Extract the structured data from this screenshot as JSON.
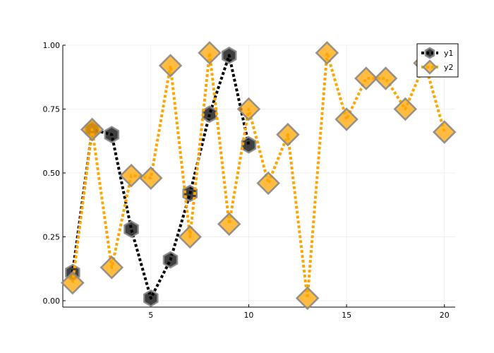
{
  "chart_data": {
    "type": "line",
    "title": "",
    "xlabel": "",
    "ylabel": "",
    "xlim": [
      0.5,
      20.55
    ],
    "ylim": [
      -0.025,
      1.0
    ],
    "grid": true,
    "legend_position": "top-right",
    "x_ticks": [
      5,
      10,
      15,
      20
    ],
    "x_tick_labels": [
      "5",
      "10",
      "15",
      "20"
    ],
    "y_ticks": [
      0.0,
      0.25,
      0.5,
      0.75,
      1.0
    ],
    "y_tick_labels": [
      "0.00",
      "0.25",
      "0.50",
      "0.75",
      "1.00"
    ],
    "series": [
      {
        "name": "y1",
        "color": "#000000",
        "marker": "hexagon",
        "x": [
          1,
          2,
          3,
          4,
          5,
          6,
          7,
          8,
          9,
          10
        ],
        "values": [
          0.11,
          0.67,
          0.65,
          0.28,
          0.01,
          0.16,
          0.42,
          0.73,
          0.96,
          0.61
        ]
      },
      {
        "name": "y2",
        "color": "#FFA500",
        "marker": "diamond",
        "x": [
          1,
          2,
          3,
          4,
          5,
          6,
          7,
          8,
          9,
          10,
          11,
          12,
          13,
          14,
          15,
          16,
          17,
          18,
          19,
          20
        ],
        "values": [
          0.07,
          0.67,
          0.13,
          0.49,
          0.48,
          0.92,
          0.25,
          0.97,
          0.3,
          0.75,
          0.46,
          0.65,
          0.01,
          0.97,
          0.71,
          0.87,
          0.87,
          0.75,
          0.93,
          0.66
        ]
      }
    ]
  }
}
